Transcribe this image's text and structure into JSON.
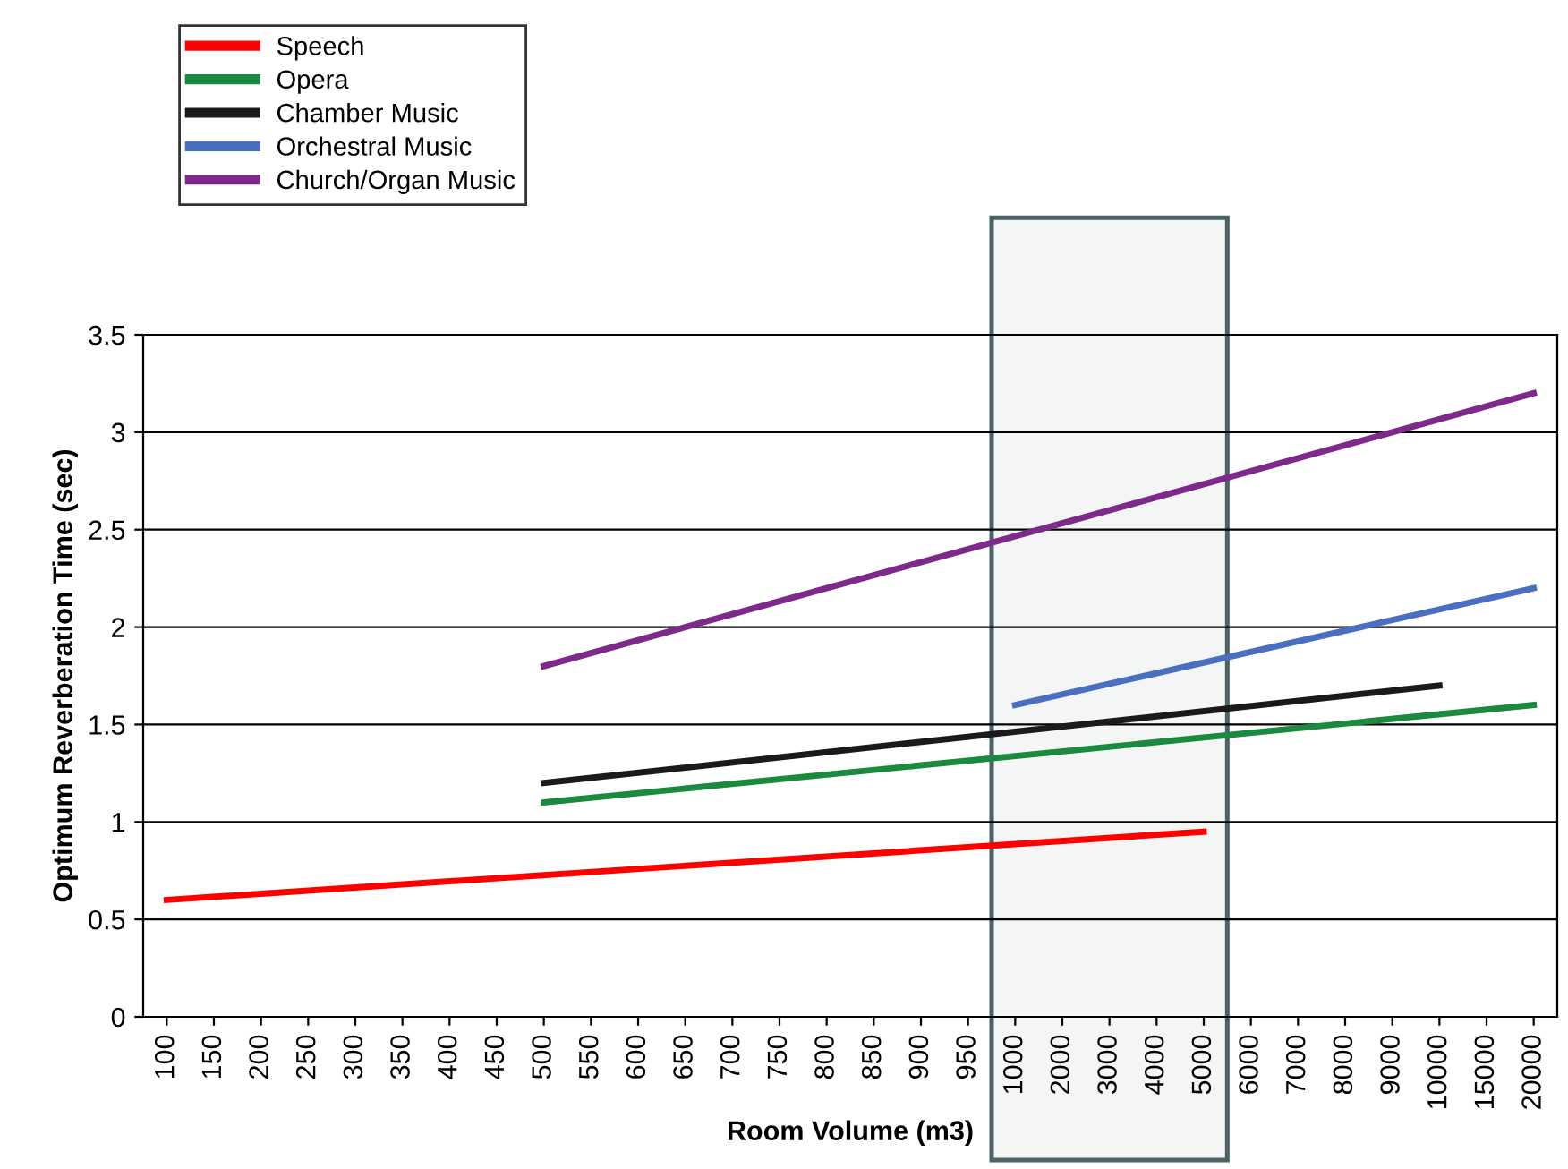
{
  "chart_data": {
    "type": "line",
    "xlabel": "Room Volume (m3)",
    "ylabel": "Optimum Reverberation Time (sec)",
    "categories": [
      "100",
      "150",
      "200",
      "250",
      "300",
      "350",
      "400",
      "450",
      "500",
      "550",
      "600",
      "650",
      "700",
      "750",
      "800",
      "850",
      "900",
      "950",
      "1000",
      "2000",
      "3000",
      "4000",
      "5000",
      "6000",
      "7000",
      "8000",
      "9000",
      "10000",
      "15000",
      "20000"
    ],
    "series": [
      {
        "name": "Speech",
        "color": "#ff0000",
        "values": [
          0.6,
          null,
          null,
          null,
          null,
          null,
          null,
          null,
          null,
          null,
          null,
          null,
          null,
          null,
          null,
          null,
          null,
          null,
          null,
          null,
          null,
          null,
          0.95,
          null,
          null,
          null,
          null,
          null,
          null,
          null
        ]
      },
      {
        "name": "Opera",
        "color": "#1a8a3e",
        "values": [
          null,
          null,
          null,
          null,
          null,
          null,
          null,
          null,
          1.1,
          null,
          null,
          null,
          null,
          null,
          null,
          null,
          null,
          null,
          null,
          null,
          null,
          null,
          null,
          null,
          null,
          null,
          null,
          null,
          null,
          1.6
        ]
      },
      {
        "name": "Chamber Music",
        "color": "#1a1a1a",
        "values": [
          null,
          null,
          null,
          null,
          null,
          null,
          null,
          null,
          1.2,
          null,
          null,
          null,
          null,
          null,
          null,
          null,
          null,
          null,
          null,
          null,
          null,
          null,
          null,
          null,
          null,
          null,
          null,
          1.7,
          null,
          null
        ]
      },
      {
        "name": "Orchestral Music",
        "color": "#4a6fc0",
        "values": [
          null,
          null,
          null,
          null,
          null,
          null,
          null,
          null,
          null,
          null,
          null,
          null,
          null,
          null,
          null,
          null,
          null,
          null,
          1.6,
          null,
          null,
          null,
          null,
          null,
          null,
          null,
          null,
          null,
          null,
          2.2
        ]
      },
      {
        "name": "Church/Organ Music",
        "color": "#7d2a8a",
        "values": [
          null,
          null,
          null,
          null,
          null,
          null,
          null,
          null,
          1.8,
          null,
          null,
          null,
          null,
          null,
          null,
          null,
          null,
          null,
          null,
          null,
          null,
          null,
          null,
          null,
          null,
          null,
          null,
          null,
          null,
          3.2
        ]
      }
    ],
    "ylim": [
      0,
      3.5
    ],
    "yticks": [
      0,
      0.5,
      1,
      1.5,
      2,
      2.5,
      3,
      3.5
    ],
    "bands": [
      {
        "axis": "x",
        "from": "1000",
        "to": "5000",
        "color": "#4c6266"
      }
    ],
    "grid": "y",
    "legend": "top left",
    "marker": "none",
    "line_style": "solid"
  }
}
